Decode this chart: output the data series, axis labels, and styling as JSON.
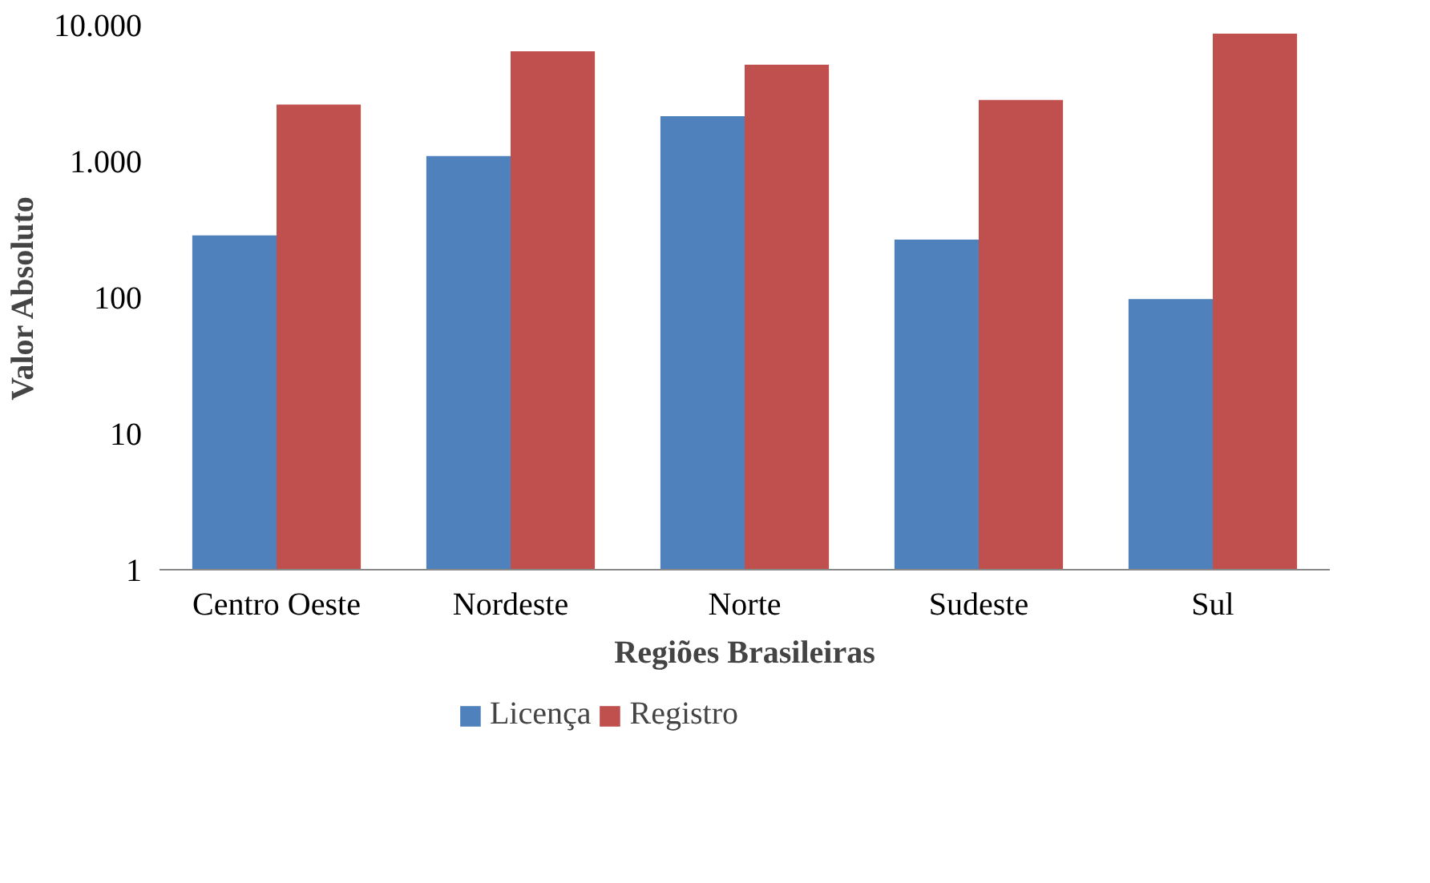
{
  "chart_data": {
    "type": "bar",
    "xlabel": "Regiões Brasileiras",
    "ylabel": "Valor Absoluto",
    "categories": [
      "Centro Oeste",
      "Nordeste",
      "Norte",
      "Sudeste",
      "Sul"
    ],
    "series": [
      {
        "name": "Licença",
        "color": "#4f81bd",
        "values": [
          285,
          1090,
          2135,
          265,
          97
        ]
      },
      {
        "name": "Registro",
        "color": "#c0504d",
        "values": [
          2600,
          6390,
          5100,
          2810,
          8610
        ]
      }
    ],
    "log": "y",
    "ylim": [
      1,
      10000
    ],
    "yticks": [
      1,
      10,
      100,
      {
        "value": 1000,
        "label": "1.000"
      },
      {
        "value": 10000,
        "label": "10.000"
      }
    ],
    "grid": false,
    "legend": "bottom"
  }
}
